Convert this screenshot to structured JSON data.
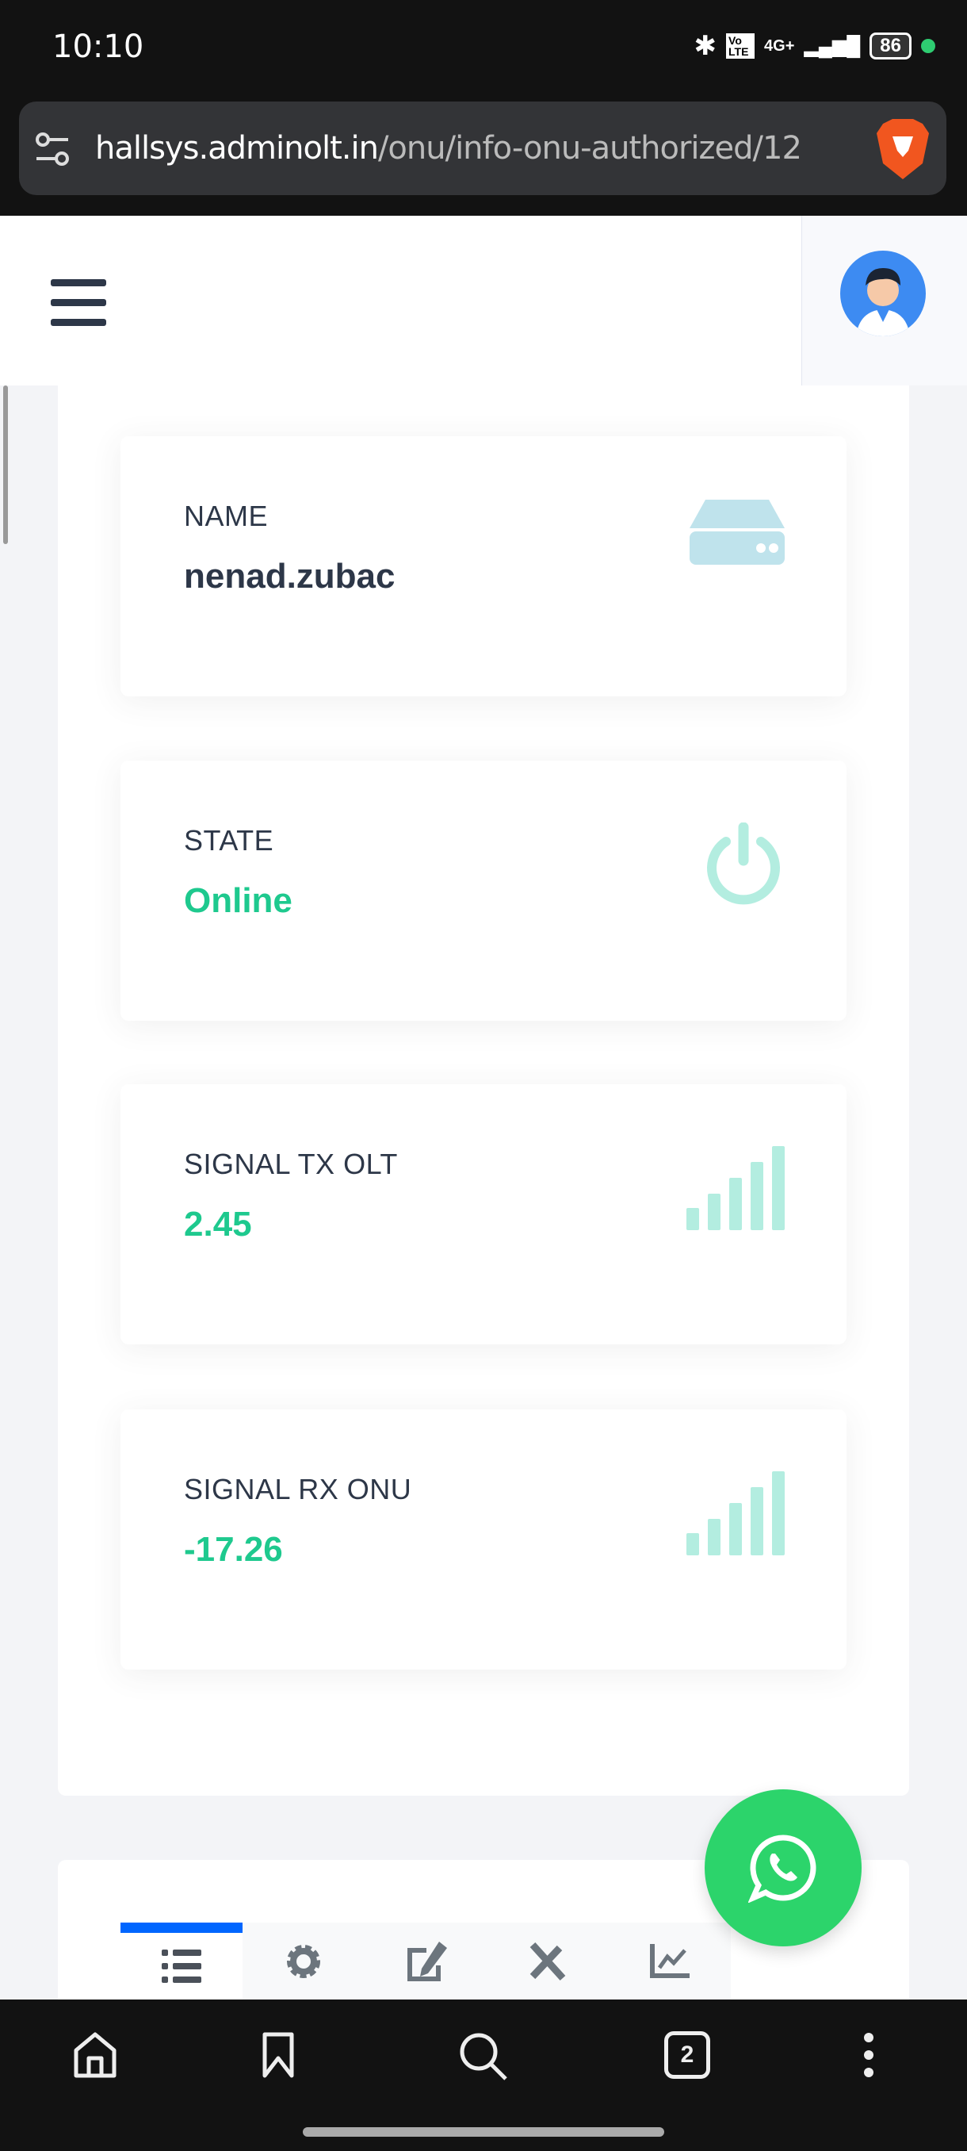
{
  "status_bar": {
    "time": "10:10",
    "battery": "86",
    "network": "4G+",
    "volte": "Vo LTE"
  },
  "browser": {
    "url_host": "hallsys.adminolt.in",
    "url_path": "/onu/info-onu-authorized/12"
  },
  "cards": [
    {
      "label": "NAME",
      "value": "nenad.zubac",
      "icon": "server-icon",
      "value_color": "#2d3748"
    },
    {
      "label": "STATE",
      "value": "Online",
      "icon": "power-icon",
      "value_color": "#1ec98e"
    },
    {
      "label": "SIGNAL TX OLT",
      "value": "2.45",
      "icon": "signal-icon",
      "value_color": "#1ec98e"
    },
    {
      "label": "SIGNAL RX ONU",
      "value": "-17.26",
      "icon": "signal-icon",
      "value_color": "#1ec98e"
    }
  ],
  "tabs": [
    {
      "icon": "list-icon",
      "active": true
    },
    {
      "icon": "gear-icon"
    },
    {
      "icon": "edit-icon"
    },
    {
      "icon": "tools-icon"
    },
    {
      "icon": "chart-line-icon"
    }
  ],
  "bottom_nav": {
    "tab_count": "2"
  },
  "colors": {
    "accent": "#0066ff",
    "success": "#1ec98e",
    "whatsapp": "#2cd46b"
  }
}
